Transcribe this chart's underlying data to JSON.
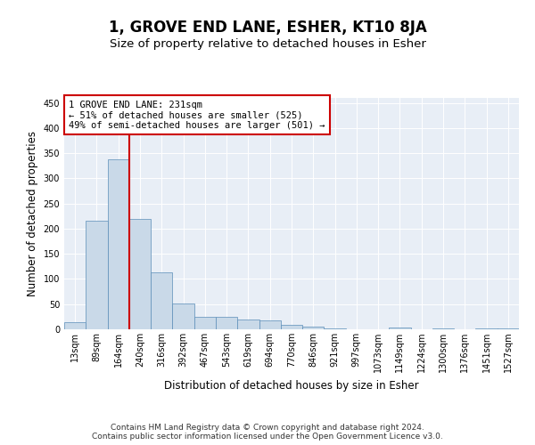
{
  "title": "1, GROVE END LANE, ESHER, KT10 8JA",
  "subtitle": "Size of property relative to detached houses in Esher",
  "xlabel": "Distribution of detached houses by size in Esher",
  "ylabel": "Number of detached properties",
  "categories": [
    "13sqm",
    "89sqm",
    "164sqm",
    "240sqm",
    "316sqm",
    "392sqm",
    "467sqm",
    "543sqm",
    "619sqm",
    "694sqm",
    "770sqm",
    "846sqm",
    "921sqm",
    "997sqm",
    "1073sqm",
    "1149sqm",
    "1224sqm",
    "1300sqm",
    "1376sqm",
    "1451sqm",
    "1527sqm"
  ],
  "values": [
    15,
    215,
    338,
    220,
    113,
    51,
    25,
    24,
    20,
    17,
    8,
    6,
    2,
    0,
    0,
    3,
    0,
    2,
    0,
    1,
    1
  ],
  "bar_color": "#c9d9e8",
  "bar_edge_color": "#5b8db8",
  "highlight_line_color": "#cc0000",
  "annotation_box_text": "1 GROVE END LANE: 231sqm\n← 51% of detached houses are smaller (525)\n49% of semi-detached houses are larger (501) →",
  "annotation_box_color": "#cc0000",
  "ylim": [
    0,
    460
  ],
  "yticks": [
    0,
    50,
    100,
    150,
    200,
    250,
    300,
    350,
    400,
    450
  ],
  "background_color": "#e8eef6",
  "footer_text": "Contains HM Land Registry data © Crown copyright and database right 2024.\nContains public sector information licensed under the Open Government Licence v3.0.",
  "title_fontsize": 12,
  "subtitle_fontsize": 9.5,
  "label_fontsize": 8.5,
  "tick_fontsize": 7,
  "annotation_fontsize": 7.5,
  "footer_fontsize": 6.5
}
